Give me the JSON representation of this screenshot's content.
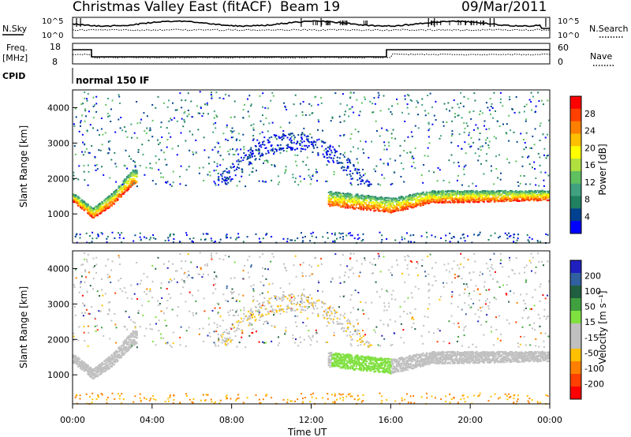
{
  "header": {
    "title": "Christmas Valley East (fitACF)",
    "beam": "Beam 19",
    "date": "09/Mar/2011"
  },
  "status_panels": {
    "nsky_label": "N.Sky",
    "nsearch_label": "N.Search",
    "noise_ticks": [
      "10^5",
      "10^0"
    ],
    "freq_label": "Freq.",
    "freq_unit": "[MHz]",
    "freq_ticks": [
      "18",
      "8"
    ],
    "nave_label": "Nave",
    "nave_ticks": [
      "60",
      "0"
    ],
    "cpid_label": "CPID",
    "cpid_text": "normal 150 IF"
  },
  "axes": {
    "ylabel": "Slant Range [km]",
    "xlabel": "Time UT",
    "y_ticks": [
      "4000",
      "3000",
      "2000",
      "1000"
    ],
    "x_ticks": [
      "00:00",
      "04:00",
      "08:00",
      "12:00",
      "16:00",
      "20:00",
      "00:00"
    ]
  },
  "colorbars": {
    "power_label": "Power [dB]",
    "power_ticks": [
      "28",
      "24",
      "20",
      "16",
      "12",
      "8",
      "4"
    ],
    "power_colors": [
      "#ff0000",
      "#ff4000",
      "#ff8000",
      "#ffc000",
      "#ffff00",
      "#b0e040",
      "#60c060",
      "#40a080",
      "#208060",
      "#004090",
      "#0000ff"
    ],
    "velocity_label": "Velocity [m s⁻¹]",
    "velocity_ticks": [
      "200",
      "100",
      "50",
      "15",
      "-15",
      "-50",
      "-100",
      "-200"
    ],
    "velocity_colors": [
      "#2020c0",
      "#3060a0",
      "#206040",
      "#40a040",
      "#80e040",
      "#c0c0c0",
      "#c0c0c0",
      "#ffc000",
      "#ff8000",
      "#ff4000",
      "#ff0000"
    ]
  },
  "chart_data": [
    {
      "type": "heatmap",
      "name": "power",
      "x_range_hours": [
        0,
        24
      ],
      "y_range_km": [
        180,
        4500
      ],
      "colorbar": "Power [dB]",
      "scatter_band_km": [
        {
          "t": 0.0,
          "center": 1450,
          "width": 180
        },
        {
          "t": 1.0,
          "center": 1000,
          "width": 200
        },
        {
          "t": 2.0,
          "center": 1400,
          "width": 250
        },
        {
          "t": 3.0,
          "center": 2000,
          "width": 300
        },
        {
          "t": 16.0,
          "center": 1200,
          "width": 300
        },
        {
          "t": 18.0,
          "center": 1450,
          "width": 250
        },
        {
          "t": 24.0,
          "center": 1500,
          "width": 200
        }
      ]
    },
    {
      "type": "heatmap",
      "name": "velocity",
      "x_range_hours": [
        0,
        24
      ],
      "y_range_km": [
        180,
        4500
      ],
      "colorbar": "Velocity [m s⁻¹]"
    }
  ]
}
